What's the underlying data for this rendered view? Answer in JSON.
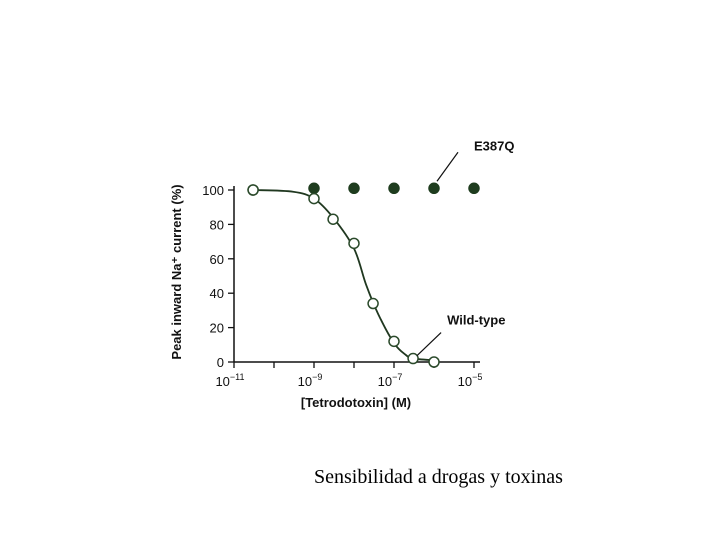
{
  "caption": "Sensibilidad a drogas y toxinas",
  "chart_data": {
    "type": "scatter",
    "xscale": "log",
    "xlim": [
      1e-11,
      1e-05
    ],
    "ylim": [
      0,
      100
    ],
    "xlabel": "[Tetrodotoxin] (M)",
    "ylabel": "Peak inward Na⁺ current (%)",
    "yticks": [
      0,
      20,
      40,
      60,
      80,
      100
    ],
    "xticks": [
      {
        "value": 1e-11,
        "base": "10",
        "exp": "−11"
      },
      {
        "value": 1e-09,
        "base": "10",
        "exp": "−9"
      },
      {
        "value": 1e-07,
        "base": "10",
        "exp": "−7"
      },
      {
        "value": 1e-05,
        "base": "10",
        "exp": "−5"
      }
    ],
    "grid": false,
    "series": [
      {
        "name": "E387Q",
        "marker": "filled",
        "color": "#1f3d1f",
        "points": [
          [
            3e-11,
            100
          ],
          [
            1e-09,
            101
          ],
          [
            1e-08,
            101
          ],
          [
            1e-07,
            101
          ],
          [
            1e-06,
            101
          ],
          [
            1e-05,
            101
          ]
        ]
      },
      {
        "name": "Wild-type",
        "marker": "open",
        "color": "#2b4a2b",
        "points": [
          [
            3e-11,
            100
          ],
          [
            1e-09,
            95
          ],
          [
            3e-09,
            83
          ],
          [
            1e-08,
            69
          ],
          [
            3e-08,
            34
          ],
          [
            1e-07,
            12
          ],
          [
            3e-07,
            2
          ],
          [
            1e-06,
            0
          ]
        ],
        "fit_curve": [
          [
            3e-11,
            100
          ],
          [
            3e-10,
            99
          ],
          [
            1e-09,
            95
          ],
          [
            3e-09,
            84
          ],
          [
            1e-08,
            66
          ],
          [
            2e-08,
            45
          ],
          [
            4e-08,
            28
          ],
          [
            1e-07,
            11
          ],
          [
            2e-07,
            4
          ],
          [
            3e-07,
            2
          ],
          [
            1e-06,
            1
          ]
        ]
      }
    ],
    "annotations": [
      {
        "text": "E387Q",
        "target": [
          1e-06,
          101
        ]
      },
      {
        "text": "Wild-type",
        "target": [
          3e-07,
          2
        ]
      }
    ]
  }
}
